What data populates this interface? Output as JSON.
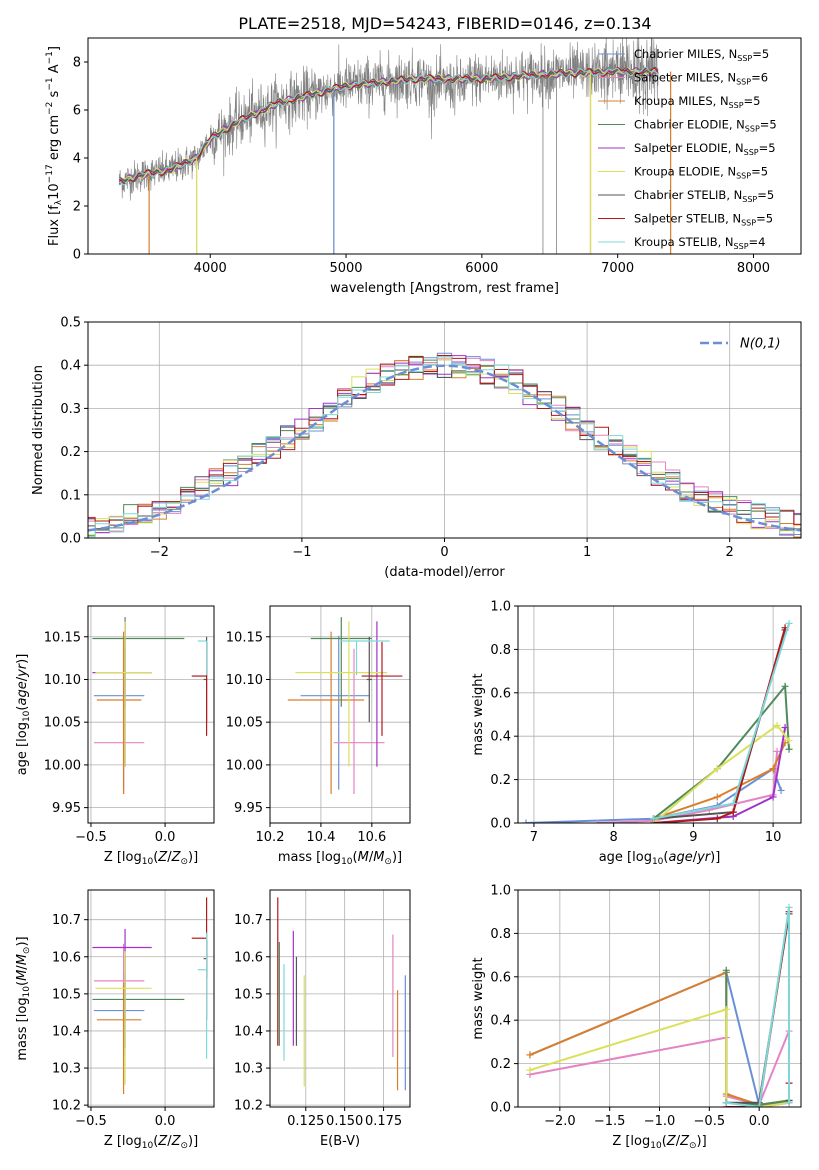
{
  "figure_title": "PLATE=2518, MJD=54243, FIBERID=0146, z=0.134",
  "colors": {
    "Chabrier MILES": "#6b8fd6",
    "Salpeter MILES": "#e584c4",
    "Kroupa MILES": "#d97f2c",
    "Chabrier ELODIE": "#4f8a5a",
    "Salpeter ELODIE": "#a033c8",
    "Kroupa ELODIE": "#dbe05a",
    "Chabrier STELIB": "#555555",
    "Salpeter STELIB": "#b0191e",
    "Kroupa STELIB": "#7fd8d8",
    "data": "#808080",
    "normal": "#6b8fd6"
  },
  "chart_data": [
    {
      "id": "spectrum",
      "type": "line",
      "xlabel": "wavelength [Angstrom, rest frame]",
      "ylabel": "Flux [f_λ10^-17 erg cm^-2 s^-1 A^-1]",
      "xlim": [
        3100,
        8350
      ],
      "ylim": [
        0,
        9
      ],
      "xticks": [
        4000,
        5000,
        6000,
        7000,
        8000
      ],
      "yticks": [
        0,
        2,
        4,
        6,
        8
      ],
      "legend": [
        {
          "name": "Chabrier MILES",
          "nssp": "5"
        },
        {
          "name": "Salpeter MILES",
          "nssp": "6"
        },
        {
          "name": "Kroupa MILES",
          "nssp": "5"
        },
        {
          "name": "Chabrier ELODIE",
          "nssp": "5"
        },
        {
          "name": "Salpeter ELODIE",
          "nssp": "5"
        },
        {
          "name": "Kroupa ELODIE",
          "nssp": "5"
        },
        {
          "name": "Chabrier STELIB",
          "nssp": "5"
        },
        {
          "name": "Salpeter STELIB",
          "nssp": "5"
        },
        {
          "name": "Kroupa STELIB",
          "nssp": "4"
        }
      ],
      "continuum": [
        [
          3330,
          3.0
        ],
        [
          3500,
          3.3
        ],
        [
          3700,
          3.5
        ],
        [
          3900,
          4.0
        ],
        [
          4000,
          4.8
        ],
        [
          4200,
          5.5
        ],
        [
          4500,
          6.3
        ],
        [
          5000,
          7.0
        ],
        [
          5500,
          7.3
        ],
        [
          6000,
          7.3
        ],
        [
          6500,
          7.5
        ],
        [
          7000,
          7.6
        ],
        [
          7300,
          7.6
        ]
      ],
      "absorption_lines": [
        3550,
        3900,
        4910,
        6450,
        6550,
        6800,
        7390
      ]
    },
    {
      "id": "residuals",
      "type": "histogram",
      "xlabel": "(data-model)/error",
      "ylabel": "Normed distribution",
      "xlim": [
        -2.5,
        2.5
      ],
      "ylim": [
        0,
        0.5
      ],
      "xticks": [
        -2,
        -1,
        0,
        1,
        2
      ],
      "yticks": [
        0.0,
        0.1,
        0.2,
        0.3,
        0.4,
        0.5
      ],
      "bin_width": 0.1,
      "legend_label": "N(0,1)"
    },
    {
      "id": "age_vs_Z",
      "type": "errorbar",
      "xlabel": "Z [log10(Z/Z⊙)]",
      "ylabel": "age [log10(age/yr)]",
      "xlim": [
        -0.52,
        0.33
      ],
      "ylim": [
        9.932,
        10.186
      ],
      "xticks": [
        -0.5,
        0.0
      ],
      "yticks": [
        9.95,
        10.0,
        10.05,
        10.1,
        10.15
      ],
      "points": [
        {
          "series": "Chabrier MILES",
          "x": -0.28,
          "xerr": [
            0.2,
            0.14
          ],
          "y": 10.081,
          "yerr": [
            0.11,
            0.07
          ]
        },
        {
          "series": "Salpeter MILES",
          "x": -0.28,
          "xerr": [
            0.2,
            0.14
          ],
          "y": 10.026,
          "yerr": [
            0.06,
            0.11
          ]
        },
        {
          "series": "Kroupa MILES",
          "x": -0.28,
          "xerr": [
            0.18,
            0.12
          ],
          "y": 10.076,
          "yerr": [
            0.11,
            0.08
          ]
        },
        {
          "series": "Chabrier ELODIE",
          "x": -0.27,
          "xerr": [
            0.22,
            0.4
          ],
          "y": 10.148,
          "yerr": [
            0.08,
            0.025
          ]
        },
        {
          "series": "Salpeter ELODIE",
          "x": -0.27,
          "xerr": [
            0.22,
            0.18
          ],
          "y": 10.108,
          "yerr": [
            0.11,
            0.06
          ]
        },
        {
          "series": "Kroupa ELODIE",
          "x": -0.27,
          "xerr": [
            0.2,
            0.18
          ],
          "y": 10.108,
          "yerr": [
            0.11,
            0.06
          ]
        },
        {
          "series": "Chabrier STELIB",
          "x": 0.28,
          "xerr": [
            0.02,
            0.0
          ],
          "y": 10.1,
          "yerr": [
            0.05,
            0.05
          ]
        },
        {
          "series": "Salpeter STELIB",
          "x": 0.28,
          "xerr": [
            0.1,
            0.0
          ],
          "y": 10.104,
          "yerr": [
            0.07,
            0.04
          ]
        },
        {
          "series": "Kroupa STELIB",
          "x": 0.28,
          "xerr": [
            0.06,
            0.0
          ],
          "y": 10.145,
          "yerr": [
            0.04,
            0.0
          ]
        }
      ]
    },
    {
      "id": "age_vs_mass",
      "type": "errorbar",
      "xlabel": "mass [log10(M/M⊙)]",
      "ylabel": "",
      "xlim": [
        10.2,
        10.75
      ],
      "ylim": [
        9.932,
        10.186
      ],
      "xticks": [
        10.2,
        10.4,
        10.6
      ],
      "yticks": [
        9.95,
        10.0,
        10.05,
        10.1,
        10.15
      ],
      "points": [
        {
          "series": "Chabrier MILES",
          "x": 10.47,
          "xerr": [
            0.15,
            0.12
          ],
          "y": 10.081,
          "yerr": [
            0.11,
            0.07
          ]
        },
        {
          "series": "Salpeter MILES",
          "x": 10.53,
          "xerr": [
            0.08,
            0.12
          ],
          "y": 10.026,
          "yerr": [
            0.06,
            0.11
          ]
        },
        {
          "series": "Kroupa MILES",
          "x": 10.44,
          "xerr": [
            0.17,
            0.13
          ],
          "y": 10.076,
          "yerr": [
            0.11,
            0.08
          ]
        },
        {
          "series": "Chabrier ELODIE",
          "x": 10.48,
          "xerr": [
            0.12,
            0.12
          ],
          "y": 10.148,
          "yerr": [
            0.08,
            0.025
          ]
        },
        {
          "series": "Salpeter ELODIE",
          "x": 10.62,
          "xerr": [
            0.0,
            0.0
          ],
          "y": 10.108,
          "yerr": [
            0.11,
            0.06
          ]
        },
        {
          "series": "Kroupa ELODIE",
          "x": 10.51,
          "xerr": [
            0.21,
            0.15
          ],
          "y": 10.108,
          "yerr": [
            0.11,
            0.06
          ]
        },
        {
          "series": "Chabrier STELIB",
          "x": 10.59,
          "xerr": [
            0.01,
            0.01
          ],
          "y": 10.1,
          "yerr": [
            0.05,
            0.05
          ]
        },
        {
          "series": "Salpeter STELIB",
          "x": 10.64,
          "xerr": [
            0.08,
            0.08
          ],
          "y": 10.104,
          "yerr": [
            0.07,
            0.04
          ]
        },
        {
          "series": "Kroupa STELIB",
          "x": 10.54,
          "xerr": [
            0.06,
            0.13
          ],
          "y": 10.145,
          "yerr": [
            0.04,
            0.0
          ]
        }
      ]
    },
    {
      "id": "mass_weight_vs_age",
      "type": "line",
      "xlabel": "age [log10(age/yr)]",
      "ylabel": "mass weight",
      "xlim": [
        6.8,
        10.35
      ],
      "ylim": [
        0,
        1.0
      ],
      "xticks": [
        7,
        8,
        9,
        10
      ],
      "yticks": [
        0.0,
        0.2,
        0.4,
        0.6,
        0.8,
        1.0
      ],
      "series": [
        {
          "name": "Chabrier MILES",
          "x": [
            6.9,
            8.5,
            9.3,
            10.0,
            10.1
          ],
          "y": [
            0.0,
            0.02,
            0.08,
            0.25,
            0.15
          ]
        },
        {
          "name": "Salpeter MILES",
          "x": [
            7.8,
            8.5,
            9.2,
            10.0,
            10.05
          ],
          "y": [
            0.0,
            0.01,
            0.06,
            0.13,
            0.33
          ]
        },
        {
          "name": "Kroupa MILES",
          "x": [
            8.5,
            9.3,
            10.0,
            10.15
          ],
          "y": [
            0.02,
            0.12,
            0.25,
            0.37
          ]
        },
        {
          "name": "Chabrier ELODIE",
          "x": [
            8.5,
            9.3,
            10.15,
            10.2
          ],
          "y": [
            0.02,
            0.25,
            0.63,
            0.34
          ]
        },
        {
          "name": "Salpeter ELODIE",
          "x": [
            8.5,
            9.5,
            10.0,
            10.15
          ],
          "y": [
            0.0,
            0.03,
            0.12,
            0.44
          ]
        },
        {
          "name": "Kroupa ELODIE",
          "x": [
            8.5,
            9.3,
            10.05,
            10.2
          ],
          "y": [
            0.0,
            0.25,
            0.45,
            0.38
          ]
        },
        {
          "name": "Chabrier STELIB",
          "x": [
            8.5,
            9.5,
            10.15
          ],
          "y": [
            0.02,
            0.05,
            0.89
          ]
        },
        {
          "name": "Salpeter STELIB",
          "x": [
            8.5,
            9.3,
            9.5,
            10.15
          ],
          "y": [
            0.0,
            0.02,
            0.05,
            0.9
          ]
        },
        {
          "name": "Kroupa STELIB",
          "x": [
            8.5,
            9.5,
            10.2
          ],
          "y": [
            0.02,
            0.09,
            0.92
          ]
        }
      ]
    },
    {
      "id": "mass_vs_Z",
      "type": "errorbar",
      "xlabel": "Z [log10(Z/Z⊙)]",
      "ylabel": "mass [log10(M/M⊙)]",
      "xlim": [
        -0.52,
        0.33
      ],
      "ylim": [
        10.195,
        10.78
      ],
      "xticks": [
        -0.5,
        0.0
      ],
      "yticks": [
        10.2,
        10.3,
        10.4,
        10.5,
        10.6,
        10.7
      ],
      "points": [
        {
          "series": "Chabrier MILES",
          "x": -0.28,
          "xerr": [
            0.2,
            0.14
          ],
          "y": 10.455,
          "yerr": [
            0.1,
            0.1
          ]
        },
        {
          "series": "Salpeter MILES",
          "x": -0.28,
          "xerr": [
            0.2,
            0.14
          ],
          "y": 10.535,
          "yerr": [
            0.2,
            0.1
          ]
        },
        {
          "series": "Kroupa MILES",
          "x": -0.28,
          "xerr": [
            0.18,
            0.12
          ],
          "y": 10.43,
          "yerr": [
            0.2,
            0.1
          ]
        },
        {
          "series": "Chabrier ELODIE",
          "x": -0.27,
          "xerr": [
            0.22,
            0.4
          ],
          "y": 10.485,
          "yerr": [
            0.13,
            0.12
          ]
        },
        {
          "series": "Salpeter ELODIE",
          "x": -0.27,
          "xerr": [
            0.22,
            0.18
          ],
          "y": 10.625,
          "yerr": [
            0.2,
            0.05
          ]
        },
        {
          "series": "Kroupa ELODIE",
          "x": -0.27,
          "xerr": [
            0.2,
            0.18
          ],
          "y": 10.515,
          "yerr": [
            0.26,
            0.1
          ]
        },
        {
          "series": "Chabrier STELIB",
          "x": 0.28,
          "xerr": [
            0.02,
            0.0
          ],
          "y": 10.595,
          "yerr": [
            0.05,
            0.05
          ]
        },
        {
          "series": "Salpeter STELIB",
          "x": 0.28,
          "xerr": [
            0.1,
            0.0
          ],
          "y": 10.65,
          "yerr": [
            0.22,
            0.11
          ]
        },
        {
          "series": "Kroupa STELIB",
          "x": 0.28,
          "xerr": [
            0.06,
            0.0
          ],
          "y": 10.565,
          "yerr": [
            0.24,
            0.1
          ]
        }
      ]
    },
    {
      "id": "mass_vs_EBV",
      "type": "errorbar",
      "xlabel": "E(B-V)",
      "ylabel": "",
      "xlim": [
        0.102,
        0.192
      ],
      "ylim": [
        10.195,
        10.78
      ],
      "xticks": [
        0.125,
        0.15,
        0.175
      ],
      "xticklabels": [
        "0.125",
        "0.150",
        "0.175"
      ],
      "yticks": [
        10.2,
        10.3,
        10.4,
        10.5,
        10.6,
        10.7
      ],
      "points": [
        {
          "series": "Chabrier MILES",
          "x": 0.189,
          "xerr": [
            0,
            0
          ],
          "y": 10.39,
          "yerr": [
            0.15,
            0.16
          ]
        },
        {
          "series": "Salpeter MILES",
          "x": 0.181,
          "xerr": [
            0,
            0
          ],
          "y": 10.5,
          "yerr": [
            0.17,
            0.16
          ]
        },
        {
          "series": "Kroupa MILES",
          "x": 0.184,
          "xerr": [
            0,
            0
          ],
          "y": 10.39,
          "yerr": [
            0.15,
            0.12
          ]
        },
        {
          "series": "Chabrier ELODIE",
          "x": 0.108,
          "xerr": [
            0,
            0
          ],
          "y": 10.5,
          "yerr": [
            0.14,
            0.14
          ]
        },
        {
          "series": "Salpeter ELODIE",
          "x": 0.117,
          "xerr": [
            0,
            0
          ],
          "y": 10.53,
          "yerr": [
            0.17,
            0.14
          ]
        },
        {
          "series": "Kroupa ELODIE",
          "x": 0.124,
          "xerr": [
            0,
            0
          ],
          "y": 10.4,
          "yerr": [
            0.15,
            0.15
          ]
        },
        {
          "series": "Chabrier STELIB",
          "x": 0.119,
          "xerr": [
            0,
            0
          ],
          "y": 10.48,
          "yerr": [
            0.12,
            0.12
          ]
        },
        {
          "series": "Salpeter STELIB",
          "x": 0.107,
          "xerr": [
            0,
            0
          ],
          "y": 10.56,
          "yerr": [
            0.2,
            0.2
          ]
        },
        {
          "series": "Kroupa STELIB",
          "x": 0.111,
          "xerr": [
            0,
            0
          ],
          "y": 10.45,
          "yerr": [
            0.13,
            0.13
          ]
        }
      ]
    },
    {
      "id": "mass_weight_vs_Z",
      "type": "line",
      "xlabel": "Z [log10(Z/Z⊙)]",
      "ylabel": "mass weight",
      "xlim": [
        -2.42,
        0.42
      ],
      "ylim": [
        0,
        1.0
      ],
      "xticks": [
        -2.0,
        -1.5,
        -1.0,
        -0.5,
        0.0
      ],
      "yticks": [
        0.0,
        0.2,
        0.4,
        0.6,
        0.8,
        1.0
      ],
      "series": [
        {
          "name": "Chabrier MILES",
          "x": [
            -2.3,
            -0.33,
            0.0,
            0.3
          ],
          "y": [
            0.24,
            0.62,
            0.01,
            0.02
          ]
        },
        {
          "name": "Salpeter MILES",
          "x": [
            -2.3,
            -0.33,
            -0.33,
            0.0,
            0.3
          ],
          "y": [
            0.15,
            0.32,
            0.05,
            0.01,
            0.35
          ]
        },
        {
          "name": "Kroupa MILES",
          "x": [
            -2.3,
            -0.33,
            -0.33,
            0.0,
            0.3
          ],
          "y": [
            0.24,
            0.62,
            0.06,
            0.01,
            0.03
          ]
        },
        {
          "name": "Chabrier ELODIE",
          "x": [
            -0.33,
            -0.33,
            0.0,
            0.3
          ],
          "y": [
            0.63,
            0.02,
            0.01,
            0.03
          ]
        },
        {
          "name": "Salpeter ELODIE",
          "x": [
            -0.33,
            0.0,
            0.3
          ],
          "y": [
            0.0,
            0.0,
            0.02
          ]
        },
        {
          "name": "Kroupa ELODIE",
          "x": [
            -2.3,
            -0.33,
            -0.33,
            0.0,
            0.3
          ],
          "y": [
            0.17,
            0.45,
            0.02,
            0.0,
            0.02
          ]
        },
        {
          "name": "Chabrier STELIB",
          "x": [
            -0.33,
            0.0,
            0.3,
            0.3
          ],
          "y": [
            0.02,
            0.02,
            0.89,
            0.03
          ]
        },
        {
          "name": "Salpeter STELIB",
          "x": [
            -0.33,
            0.0,
            0.3,
            0.3
          ],
          "y": [
            0.0,
            0.0,
            0.9,
            0.11
          ]
        },
        {
          "name": "Kroupa STELIB",
          "x": [
            -0.33,
            0.0,
            0.3,
            0.3
          ],
          "y": [
            0.02,
            0.0,
            0.92,
            0.02
          ]
        }
      ]
    }
  ]
}
